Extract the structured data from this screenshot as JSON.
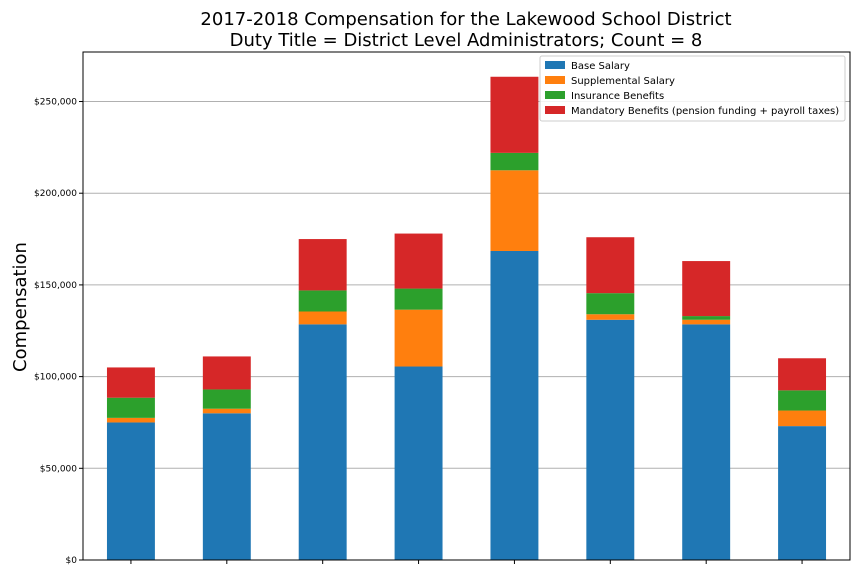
{
  "chart_data": {
    "type": "bar",
    "stacked": true,
    "title_line1": "2017-2018 Compensation for the Lakewood School District",
    "title_line2": "Duty Title = District Level Administrators; Count = 8",
    "xlabel": "",
    "ylabel": "Compensation",
    "ylim": [
      0,
      277000
    ],
    "yticks": [
      0,
      50000,
      100000,
      150000,
      200000,
      250000
    ],
    "ytick_labels": [
      "$0",
      "$50,000",
      "$100,000",
      "$150,000",
      "$200,000",
      "$250,000"
    ],
    "grid": "horizontal",
    "legend_position": "top-right",
    "categories": [
      "",
      "",
      "",
      "",
      "",
      "",
      "",
      ""
    ],
    "series": [
      {
        "name": "Base Salary",
        "color": "#1f77b4",
        "values": [
          75000,
          80000,
          128500,
          105500,
          168500,
          131000,
          128500,
          73000
        ]
      },
      {
        "name": "Supplemental Salary",
        "color": "#ff7f0e",
        "values": [
          2500,
          2500,
          7000,
          31000,
          44000,
          3000,
          2500,
          8500
        ]
      },
      {
        "name": "Insurance Benefits",
        "color": "#2ca02c",
        "values": [
          11000,
          10500,
          11500,
          11500,
          9500,
          11500,
          2000,
          11000
        ]
      },
      {
        "name": "Mandatory Benefits (pension funding + payroll taxes)",
        "color": "#d62728",
        "values": [
          16500,
          18000,
          28000,
          30000,
          41500,
          30500,
          30000,
          17500
        ]
      }
    ]
  }
}
